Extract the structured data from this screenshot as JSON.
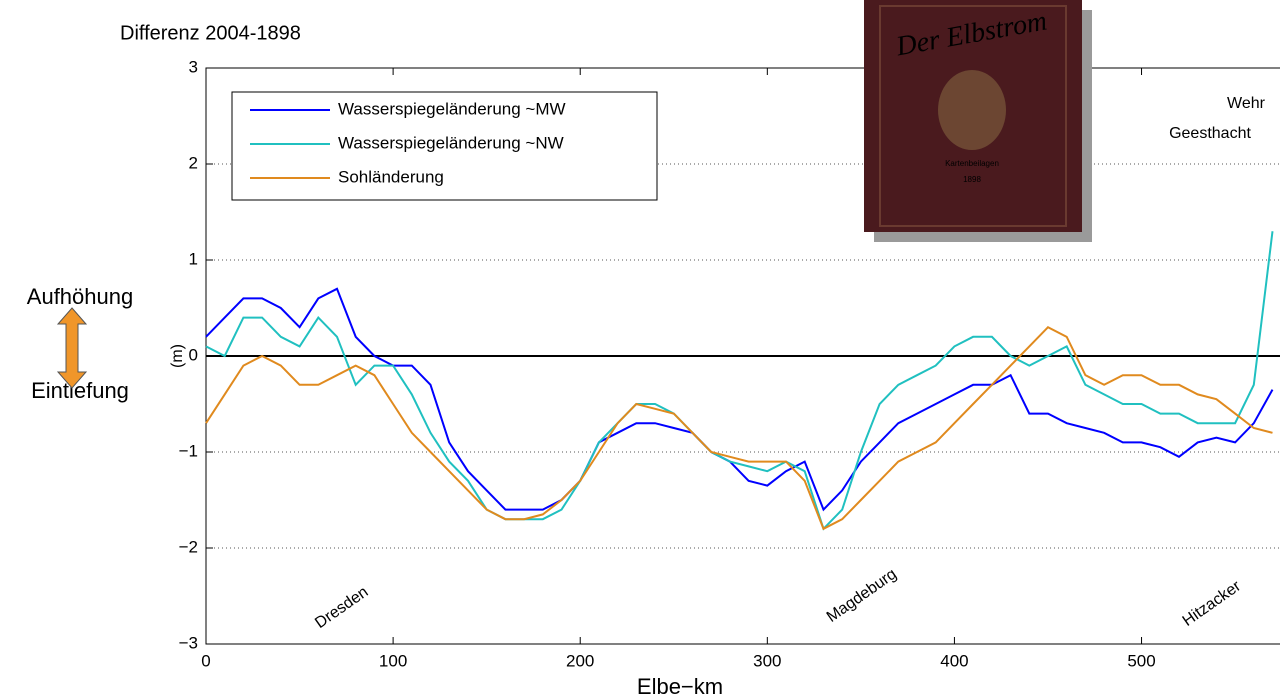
{
  "chart_data": {
    "type": "line",
    "title": "Differenz 2004-1898",
    "x_label": "Elbe−km",
    "y_label": "(m)",
    "side_labels": [
      "Aufhöhung",
      "Eintiefung"
    ],
    "annotations": [
      "Wehr",
      "Geesthacht",
      "Dresden",
      "Magdeburg",
      "Hitzacker"
    ],
    "book_cover": [
      "Der Elbstrom",
      "Kartenbeilagen",
      "1898"
    ],
    "x": [
      0,
      10,
      20,
      30,
      40,
      50,
      60,
      70,
      80,
      90,
      100,
      110,
      120,
      130,
      140,
      150,
      160,
      170,
      180,
      190,
      200,
      210,
      220,
      230,
      240,
      250,
      260,
      270,
      280,
      290,
      300,
      310,
      320,
      330,
      340,
      350,
      360,
      370,
      380,
      390,
      400,
      410,
      420,
      430,
      440,
      450,
      460,
      470,
      480,
      490,
      500,
      510,
      520,
      530,
      540,
      550,
      560,
      570
    ],
    "series": [
      {
        "name": "Wasserspiegeländerung ~MW",
        "color": "#0000ff",
        "values": [
          0.2,
          0.4,
          0.6,
          0.6,
          0.5,
          0.3,
          0.6,
          0.7,
          0.2,
          0.0,
          -0.1,
          -0.1,
          -0.3,
          -0.9,
          -1.2,
          -1.4,
          -1.6,
          -1.6,
          -1.6,
          -1.5,
          -1.3,
          -0.9,
          -0.8,
          -0.7,
          -0.7,
          -0.75,
          -0.8,
          -1.0,
          -1.1,
          -1.3,
          -1.35,
          -1.2,
          -1.1,
          -1.6,
          -1.4,
          -1.1,
          -0.9,
          -0.7,
          -0.6,
          -0.5,
          -0.4,
          -0.3,
          -0.3,
          -0.2,
          -0.6,
          -0.6,
          -0.7,
          -0.75,
          -0.8,
          -0.9,
          -0.9,
          -0.95,
          -1.05,
          -0.9,
          -0.85,
          -0.9,
          -0.7,
          -0.35
        ]
      },
      {
        "name": "Wasserspiegeländerung ~NW",
        "color": "#20c0c0",
        "values": [
          0.1,
          0.0,
          0.4,
          0.4,
          0.2,
          0.1,
          0.4,
          0.2,
          -0.3,
          -0.1,
          -0.1,
          -0.4,
          -0.8,
          -1.1,
          -1.3,
          -1.6,
          -1.7,
          -1.7,
          -1.7,
          -1.6,
          -1.3,
          -0.9,
          -0.7,
          -0.5,
          -0.5,
          -0.6,
          -0.8,
          -1.0,
          -1.1,
          -1.15,
          -1.2,
          -1.1,
          -1.2,
          -1.8,
          -1.6,
          -1.0,
          -0.5,
          -0.3,
          -0.2,
          -0.1,
          0.1,
          0.2,
          0.2,
          0.0,
          -0.1,
          0.0,
          0.1,
          -0.3,
          -0.4,
          -0.5,
          -0.5,
          -0.6,
          -0.6,
          -0.7,
          -0.7,
          -0.7,
          -0.3,
          1.3
        ]
      },
      {
        "name": "Sohländerung",
        "color": "#e08a1e",
        "values": [
          -0.7,
          -0.4,
          -0.1,
          0.0,
          -0.1,
          -0.3,
          -0.3,
          -0.2,
          -0.1,
          -0.2,
          -0.5,
          -0.8,
          -1.0,
          -1.2,
          -1.4,
          -1.6,
          -1.7,
          -1.7,
          -1.65,
          -1.5,
          -1.3,
          -1.0,
          -0.7,
          -0.5,
          -0.55,
          -0.6,
          -0.8,
          -1.0,
          -1.05,
          -1.1,
          -1.1,
          -1.1,
          -1.3,
          -1.8,
          -1.7,
          -1.5,
          -1.3,
          -1.1,
          -1.0,
          -0.9,
          -0.7,
          -0.5,
          -0.3,
          -0.1,
          0.1,
          0.3,
          0.2,
          -0.2,
          -0.3,
          -0.2,
          -0.2,
          -0.3,
          -0.3,
          -0.4,
          -0.45,
          -0.6,
          -0.75,
          -0.8
        ]
      }
    ],
    "xlim": [
      0,
      574
    ],
    "xticks": [
      0,
      100,
      200,
      300,
      400,
      500
    ],
    "ylim": [
      -3,
      3
    ],
    "yticks": [
      {
        "value": -3,
        "label": "−3"
      },
      {
        "value": -2,
        "label": "−2"
      },
      {
        "value": -1,
        "label": "−1"
      },
      0,
      1,
      2,
      3
    ],
    "grid": true,
    "legend": "upper left"
  }
}
